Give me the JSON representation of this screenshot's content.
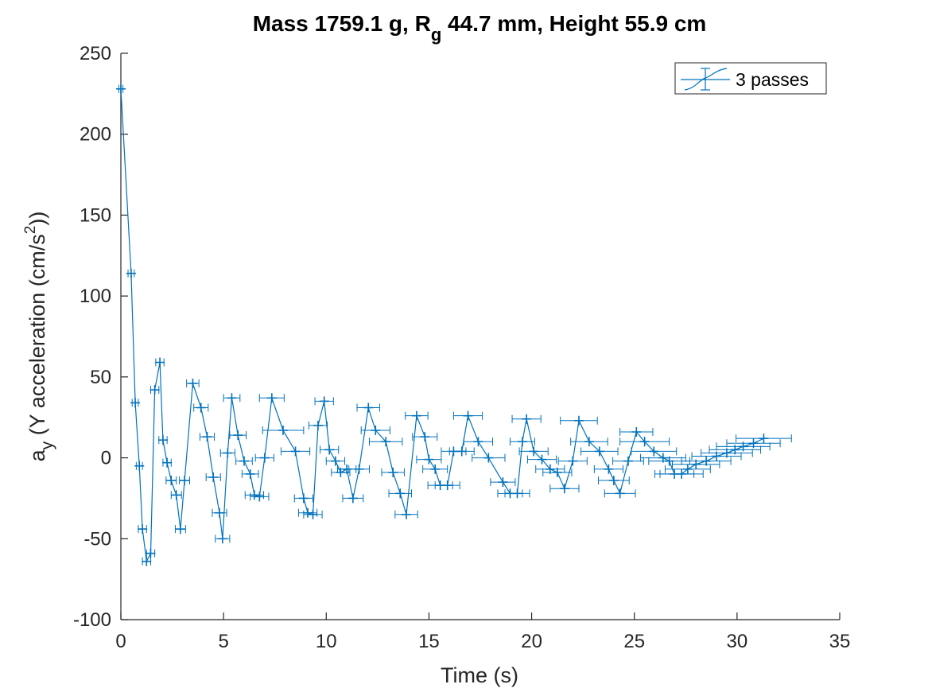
{
  "chart_data": {
    "type": "errorbar-line",
    "title": {
      "part1": "Mass 1759.1 g, R",
      "sub": "g",
      "part2": " 44.7 mm,  Height 55.9 cm"
    },
    "xlabel": "Time (s)",
    "ylabel": {
      "a": "a",
      "sub": "y",
      "mid": " (Y acceleration (cm/s",
      "sup": "2",
      "end": "))"
    },
    "xlim": [
      0,
      35
    ],
    "ylim": [
      -100,
      250
    ],
    "xticks": [
      "0",
      "5",
      "10",
      "15",
      "20",
      "25",
      "30",
      "35"
    ],
    "yticks": [
      "-100",
      "-50",
      "0",
      "50",
      "100",
      "150",
      "200",
      "250"
    ],
    "legend": {
      "label": "3 passes",
      "position": "top-right"
    },
    "color": "#0072BD",
    "series": [
      {
        "name": "3 passes",
        "points": [
          {
            "x": 0.0,
            "y": 228,
            "err": 0.1
          },
          {
            "x": 0.5,
            "y": 114,
            "err": 0.15
          },
          {
            "x": 0.7,
            "y": 34,
            "err": 0.15
          },
          {
            "x": 0.9,
            "y": -5,
            "err": 0.15
          },
          {
            "x": 1.05,
            "y": -44,
            "err": 0.2
          },
          {
            "x": 1.25,
            "y": -64,
            "err": 0.2
          },
          {
            "x": 1.45,
            "y": -59,
            "err": 0.2
          },
          {
            "x": 1.65,
            "y": 42,
            "err": 0.2
          },
          {
            "x": 1.9,
            "y": 59,
            "err": 0.2
          },
          {
            "x": 2.05,
            "y": 11,
            "err": 0.2
          },
          {
            "x": 2.25,
            "y": -3,
            "err": 0.2
          },
          {
            "x": 2.45,
            "y": -14,
            "err": 0.25
          },
          {
            "x": 2.7,
            "y": -23,
            "err": 0.25
          },
          {
            "x": 2.9,
            "y": -44,
            "err": 0.25
          },
          {
            "x": 3.1,
            "y": -14,
            "err": 0.25
          },
          {
            "x": 3.5,
            "y": 46,
            "err": 0.3
          },
          {
            "x": 3.9,
            "y": 31,
            "err": 0.35
          },
          {
            "x": 4.2,
            "y": 13,
            "err": 0.35
          },
          {
            "x": 4.5,
            "y": -12,
            "err": 0.35
          },
          {
            "x": 4.8,
            "y": -34,
            "err": 0.35
          },
          {
            "x": 4.95,
            "y": -50,
            "err": 0.35
          },
          {
            "x": 5.2,
            "y": 3,
            "err": 0.35
          },
          {
            "x": 5.4,
            "y": 37,
            "err": 0.4
          },
          {
            "x": 5.7,
            "y": 14,
            "err": 0.4
          },
          {
            "x": 6.0,
            "y": -2,
            "err": 0.4
          },
          {
            "x": 6.3,
            "y": -10,
            "err": 0.4
          },
          {
            "x": 6.5,
            "y": -23,
            "err": 0.45
          },
          {
            "x": 6.75,
            "y": -24,
            "err": 0.45
          },
          {
            "x": 7.0,
            "y": 0,
            "err": 0.45
          },
          {
            "x": 7.35,
            "y": 37,
            "err": 0.6
          },
          {
            "x": 7.9,
            "y": 17,
            "err": 1.0
          },
          {
            "x": 8.5,
            "y": 4,
            "err": 0.7
          },
          {
            "x": 8.9,
            "y": -25,
            "err": 0.45
          },
          {
            "x": 9.1,
            "y": -34,
            "err": 0.45
          },
          {
            "x": 9.35,
            "y": -35,
            "err": 0.45
          },
          {
            "x": 9.6,
            "y": 20,
            "err": 0.45
          },
          {
            "x": 9.9,
            "y": 35,
            "err": 0.45
          },
          {
            "x": 10.15,
            "y": 5,
            "err": 0.45
          },
          {
            "x": 10.45,
            "y": -2,
            "err": 0.45
          },
          {
            "x": 10.7,
            "y": -9,
            "err": 0.45
          },
          {
            "x": 11.0,
            "y": -7,
            "err": 0.45
          },
          {
            "x": 11.3,
            "y": -25,
            "err": 0.5
          },
          {
            "x": 11.6,
            "y": -7,
            "err": 0.5
          },
          {
            "x": 12.05,
            "y": 31,
            "err": 0.55
          },
          {
            "x": 12.4,
            "y": 17,
            "err": 0.7
          },
          {
            "x": 12.9,
            "y": 10,
            "err": 0.8
          },
          {
            "x": 13.25,
            "y": -9,
            "err": 0.55
          },
          {
            "x": 13.6,
            "y": -22,
            "err": 0.55
          },
          {
            "x": 13.9,
            "y": -35,
            "err": 0.55
          },
          {
            "x": 14.4,
            "y": 26,
            "err": 0.55
          },
          {
            "x": 14.8,
            "y": 13,
            "err": 0.6
          },
          {
            "x": 15.0,
            "y": -1,
            "err": 0.6
          },
          {
            "x": 15.3,
            "y": -7,
            "err": 0.6
          },
          {
            "x": 15.55,
            "y": -17,
            "err": 0.6
          },
          {
            "x": 15.9,
            "y": -17,
            "err": 0.6
          },
          {
            "x": 16.2,
            "y": 4,
            "err": 0.6
          },
          {
            "x": 16.6,
            "y": 4,
            "err": 0.6
          },
          {
            "x": 16.9,
            "y": 26,
            "err": 0.7
          },
          {
            "x": 17.4,
            "y": 10,
            "err": 0.7
          },
          {
            "x": 17.9,
            "y": 0,
            "err": 0.8
          },
          {
            "x": 18.6,
            "y": -15,
            "err": 0.6
          },
          {
            "x": 18.95,
            "y": -22,
            "err": 0.6
          },
          {
            "x": 19.3,
            "y": -22,
            "err": 0.6
          },
          {
            "x": 19.55,
            "y": 10,
            "err": 0.6
          },
          {
            "x": 19.75,
            "y": 24,
            "err": 0.7
          },
          {
            "x": 20.1,
            "y": 4,
            "err": 0.7
          },
          {
            "x": 20.5,
            "y": -1,
            "err": 0.7
          },
          {
            "x": 20.9,
            "y": -7,
            "err": 0.7
          },
          {
            "x": 21.25,
            "y": -9,
            "err": 0.7
          },
          {
            "x": 21.6,
            "y": -19,
            "err": 0.7
          },
          {
            "x": 22.0,
            "y": -2,
            "err": 0.7
          },
          {
            "x": 22.3,
            "y": 23,
            "err": 0.9
          },
          {
            "x": 22.8,
            "y": 10,
            "err": 0.9
          },
          {
            "x": 23.3,
            "y": 4,
            "err": 0.9
          },
          {
            "x": 23.75,
            "y": -7,
            "err": 0.7
          },
          {
            "x": 24.0,
            "y": -14,
            "err": 0.75
          },
          {
            "x": 24.3,
            "y": -22,
            "err": 0.75
          },
          {
            "x": 24.7,
            "y": -2,
            "err": 0.75
          },
          {
            "x": 25.1,
            "y": 16,
            "err": 0.8
          },
          {
            "x": 25.5,
            "y": 10,
            "err": 1.2
          },
          {
            "x": 25.95,
            "y": 4,
            "err": 1.1
          },
          {
            "x": 26.4,
            "y": 0,
            "err": 1.1
          },
          {
            "x": 26.7,
            "y": -2,
            "err": 1.0
          },
          {
            "x": 26.95,
            "y": -10,
            "err": 0.95
          },
          {
            "x": 27.3,
            "y": -10,
            "err": 1.05
          },
          {
            "x": 27.6,
            "y": -7,
            "err": 1.1
          },
          {
            "x": 28.0,
            "y": -4,
            "err": 1.15
          },
          {
            "x": 28.5,
            "y": -2,
            "err": 1.2
          },
          {
            "x": 29.0,
            "y": 1,
            "err": 1.2
          },
          {
            "x": 29.5,
            "y": 3,
            "err": 1.25
          },
          {
            "x": 29.9,
            "y": 5,
            "err": 1.25
          },
          {
            "x": 30.3,
            "y": 7,
            "err": 1.3
          },
          {
            "x": 30.8,
            "y": 9,
            "err": 1.3
          },
          {
            "x": 31.3,
            "y": 12,
            "err": 1.35
          }
        ]
      }
    ]
  }
}
